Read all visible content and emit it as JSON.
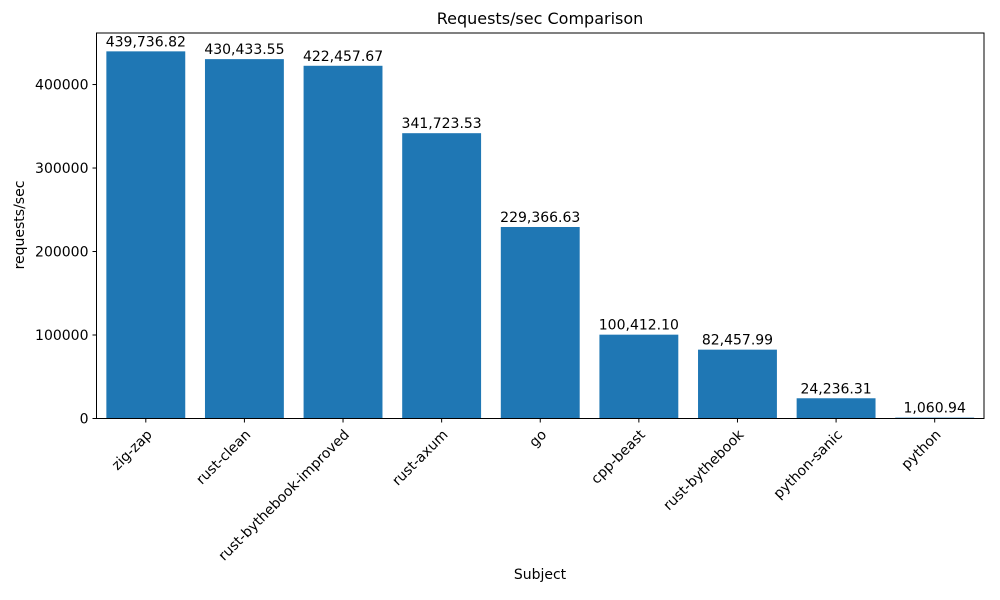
{
  "chart_data": {
    "type": "bar",
    "title": "Requests/sec Comparison",
    "xlabel": "Subject",
    "ylabel": "requests/sec",
    "categories": [
      "zig-zap",
      "rust-clean",
      "rust-bythebook-improved",
      "rust-axum",
      "go",
      "cpp-beast",
      "rust-bythebook",
      "python-sanic",
      "python"
    ],
    "values": [
      439736.82,
      430433.55,
      422457.67,
      341723.53,
      229366.63,
      100412.1,
      82457.99,
      24236.31,
      1060.94
    ],
    "value_labels": [
      "439,736.82",
      "430,433.55",
      "422,457.67",
      "341,723.53",
      "229,366.63",
      "100,412.10",
      "82,457.99",
      "24,236.31",
      "1,060.94"
    ],
    "yticks": [
      0,
      100000,
      200000,
      300000,
      400000
    ],
    "ytick_labels": [
      "0",
      "100000",
      "200000",
      "300000",
      "400000"
    ],
    "ylim": [
      0,
      461723.66
    ],
    "bar_color": "#1f77b4",
    "axis_color": "#000000",
    "grid": false,
    "legend_position": "none",
    "x_tick_rotation": 45,
    "bar_width_fraction": 0.8
  }
}
